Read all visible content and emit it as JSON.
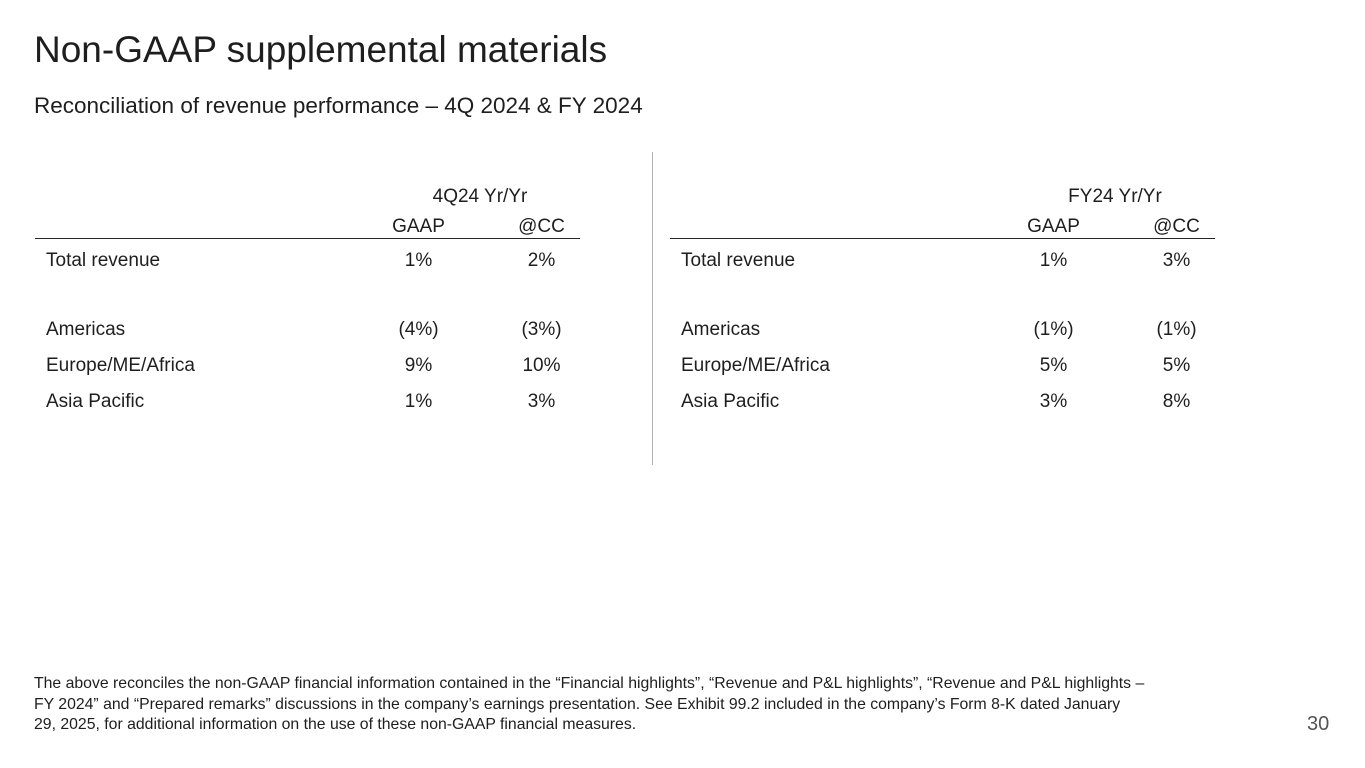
{
  "page": {
    "title": "Non-GAAP supplemental materials",
    "subtitle": "Reconciliation of revenue performance – 4Q 2024 & FY 2024",
    "page_number": "30"
  },
  "tables": [
    {
      "period_header": "4Q24 Yr/Yr",
      "columns": [
        "GAAP",
        "@CC"
      ],
      "rows": [
        {
          "label": "Total revenue",
          "gaap": "1%",
          "cc": "2%"
        },
        {
          "label": "Americas",
          "gaap": "(4%)",
          "cc": "(3%)"
        },
        {
          "label": "Europe/ME/Africa",
          "gaap": "9%",
          "cc": "10%"
        },
        {
          "label": "Asia Pacific",
          "gaap": "1%",
          "cc": "3%"
        }
      ]
    },
    {
      "period_header": "FY24 Yr/Yr",
      "columns": [
        "GAAP",
        "@CC"
      ],
      "rows": [
        {
          "label": "Total revenue",
          "gaap": "1%",
          "cc": "3%"
        },
        {
          "label": "Americas",
          "gaap": "(1%)",
          "cc": "(1%)"
        },
        {
          "label": "Europe/ME/Africa",
          "gaap": "5%",
          "cc": "5%"
        },
        {
          "label": "Asia Pacific",
          "gaap": "3%",
          "cc": "8%"
        }
      ]
    }
  ],
  "footnote": {
    "lines": [
      "The above reconciles the non-GAAP financial information contained in the “Financial highlights”, “Revenue and P&L highlights”, “Revenue and P&L highlights –",
      "FY 2024” and “Prepared remarks” discussions in the company’s earnings presentation. See Exhibit 99.2 included in the company’s Form 8-K dated January",
      "29, 2025, for additional information on the use of these non-GAAP financial measures."
    ]
  },
  "colors": {
    "background": "#ffffff",
    "text": "#1e1e1e",
    "rule": "#262626",
    "divider": "#b0b0b0",
    "page_number": "#545454"
  }
}
